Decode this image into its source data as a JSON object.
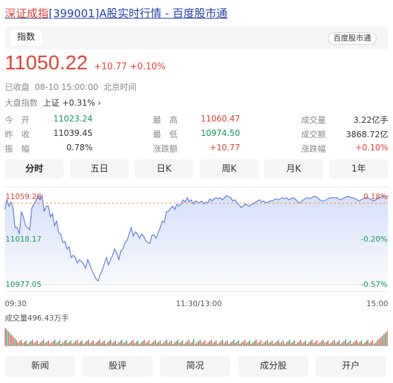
{
  "title": {
    "name": "深证成指",
    "rest": "[399001]A股实时行情 - 百度股市通"
  },
  "tab_label": "指数",
  "source_badge": "百度股市通",
  "quote": {
    "price": "11050.22",
    "change": "+10.77 +0.10%"
  },
  "status": {
    "state": "已收盘",
    "time": "08-10 15:00:00",
    "tz": "北京时间"
  },
  "market": {
    "label": "大盘指数",
    "value": "上证 +0.31%",
    "chevron": "›"
  },
  "stats": [
    [
      {
        "label": "今　开",
        "value": "11023.24",
        "color": "#0a9a55"
      },
      {
        "label": "最　高",
        "value": "11060.47",
        "color": "#e33e33"
      },
      {
        "label": "成交量",
        "value": "3.22亿手",
        "color": "#333333"
      }
    ],
    [
      {
        "label": "昨　收",
        "value": "11039.45",
        "color": "#333333"
      },
      {
        "label": "最　低",
        "value": "10974.50",
        "color": "#0a9a55"
      },
      {
        "label": "成交额",
        "value": "3868.72亿",
        "color": "#333333"
      }
    ],
    [
      {
        "label": "振　幅",
        "value": "0.78%",
        "color": "#333333"
      },
      {
        "label": "涨跌额",
        "value": "+10.77",
        "color": "#e33e33"
      },
      {
        "label": "涨跌幅",
        "value": "+0.10%",
        "color": "#e33e33"
      }
    ]
  ],
  "periods": [
    "分时",
    "五日",
    "日K",
    "周K",
    "月K",
    "1年"
  ],
  "active_period": 0,
  "chart_data": {
    "type": "area",
    "prev_close": 11039.45,
    "y_ticks_left": [
      "11059.28",
      "11018.17",
      "10977.05"
    ],
    "y_ticks_right": [
      "0.18%",
      "-0.20%",
      "-0.57%"
    ],
    "x_ticks": [
      "09:30",
      "11:30/13:00",
      "15:00"
    ],
    "ylim": [
      10977.05,
      11059.28
    ],
    "volume_label": "成交量496.43万手",
    "line_color": "#5b7bd5",
    "up_color": "#e33e33",
    "down_color": "#0a9a55",
    "anchors": [
      [
        0,
        11047
      ],
      [
        3,
        11056
      ],
      [
        6,
        11050
      ],
      [
        9,
        11054
      ],
      [
        12,
        11048
      ],
      [
        15,
        11030
      ],
      [
        18,
        11030
      ],
      [
        21,
        11024
      ],
      [
        24,
        11045
      ],
      [
        27,
        11040
      ],
      [
        30,
        11032
      ],
      [
        33,
        11030
      ],
      [
        36,
        11028
      ],
      [
        39,
        11048
      ],
      [
        42,
        11052
      ],
      [
        45,
        11055
      ],
      [
        48,
        11060
      ],
      [
        51,
        11056
      ],
      [
        54,
        11060
      ],
      [
        57,
        11045
      ],
      [
        60,
        11050
      ],
      [
        63,
        11050
      ],
      [
        66,
        11040
      ],
      [
        69,
        11043
      ],
      [
        72,
        11032
      ],
      [
        75,
        11036
      ],
      [
        78,
        11025
      ],
      [
        81,
        11024
      ],
      [
        84,
        11016
      ],
      [
        87,
        11017
      ],
      [
        90,
        11010
      ],
      [
        93,
        11012
      ],
      [
        96,
        11002
      ],
      [
        99,
        11004
      ],
      [
        102,
        11002
      ],
      [
        105,
        10997
      ],
      [
        108,
        11000
      ],
      [
        111,
        10998
      ],
      [
        114,
        10996
      ],
      [
        117,
        10992
      ],
      [
        120,
        11000
      ],
      [
        123,
        10995
      ],
      [
        126,
        10990
      ],
      [
        129,
        10986
      ],
      [
        132,
        10982
      ],
      [
        135,
        10980
      ],
      [
        138,
        10986
      ],
      [
        141,
        10990
      ],
      [
        144,
        10996
      ],
      [
        147,
        11002
      ],
      [
        150,
        10995
      ],
      [
        153,
        11000
      ],
      [
        156,
        11004
      ],
      [
        159,
        11010
      ],
      [
        162,
        11006
      ],
      [
        165,
        11000
      ],
      [
        168,
        11008
      ],
      [
        171,
        11010
      ],
      [
        174,
        11016
      ],
      [
        177,
        11018
      ],
      [
        180,
        11024
      ],
      [
        183,
        11030
      ],
      [
        186,
        11022
      ],
      [
        189,
        11026
      ],
      [
        192,
        11024
      ],
      [
        195,
        11020
      ],
      [
        198,
        11024
      ],
      [
        201,
        11022
      ],
      [
        204,
        11018
      ],
      [
        207,
        11016
      ],
      [
        210,
        11015
      ],
      [
        213,
        11023
      ],
      [
        216,
        11023
      ],
      [
        219,
        11020
      ],
      [
        222,
        11025
      ],
      [
        225,
        11030
      ],
      [
        228,
        11036
      ],
      [
        231,
        11035
      ],
      [
        234,
        11045
      ],
      [
        237,
        11045
      ],
      [
        240,
        11048
      ],
      [
        243,
        11050
      ],
      [
        246,
        11047
      ],
      [
        249,
        11052
      ],
      [
        252,
        11050
      ],
      [
        255,
        11052
      ],
      [
        258,
        11056
      ],
      [
        261,
        11054
      ],
      [
        264,
        11058
      ],
      [
        267,
        11054
      ],
      [
        270,
        11056
      ],
      [
        273,
        11052
      ],
      [
        276,
        11055
      ],
      [
        279,
        11054
      ],
      [
        282,
        11053
      ],
      [
        285,
        11055
      ],
      [
        288,
        11052
      ],
      [
        291,
        11054
      ],
      [
        294,
        11053
      ],
      [
        297,
        11057
      ],
      [
        300,
        11055
      ],
      [
        303,
        11057
      ],
      [
        306,
        11058
      ],
      [
        309,
        11057
      ],
      [
        312,
        11058
      ],
      [
        315,
        11056
      ],
      [
        318,
        11058
      ],
      [
        321,
        11060
      ],
      [
        324,
        11059
      ],
      [
        327,
        11058
      ],
      [
        330,
        11055
      ],
      [
        333,
        11056
      ],
      [
        336,
        11054
      ],
      [
        339,
        11051
      ],
      [
        342,
        11049
      ],
      [
        345,
        11050
      ],
      [
        348,
        11052
      ],
      [
        351,
        11051
      ],
      [
        354,
        11050
      ],
      [
        357,
        11052
      ],
      [
        360,
        11052
      ],
      [
        363,
        11054
      ],
      [
        366,
        11055
      ],
      [
        369,
        11056
      ],
      [
        372,
        11054
      ],
      [
        375,
        11055
      ],
      [
        378,
        11053
      ],
      [
        381,
        11054
      ],
      [
        384,
        11055
      ],
      [
        387,
        11055
      ],
      [
        390,
        11056
      ],
      [
        393,
        11057
      ],
      [
        396,
        11056
      ],
      [
        399,
        11057
      ],
      [
        402,
        11058
      ],
      [
        405,
        11057
      ],
      [
        408,
        11058
      ],
      [
        411,
        11056
      ],
      [
        414,
        11057
      ],
      [
        417,
        11058
      ],
      [
        420,
        11057
      ],
      [
        423,
        11055
      ],
      [
        426,
        11053
      ],
      [
        429,
        11054
      ],
      [
        432,
        11056
      ],
      [
        435,
        11057
      ],
      [
        438,
        11058
      ],
      [
        441,
        11057
      ],
      [
        444,
        11058
      ],
      [
        447,
        11059
      ],
      [
        450,
        11059
      ],
      [
        453,
        11058
      ],
      [
        456,
        11056
      ],
      [
        459,
        11055
      ],
      [
        462,
        11055
      ],
      [
        465,
        11056
      ],
      [
        468,
        11057
      ],
      [
        471,
        11058
      ],
      [
        474,
        11058
      ],
      [
        477,
        11058
      ],
      [
        480,
        11058
      ],
      [
        483,
        11057
      ],
      [
        486,
        11056
      ],
      [
        489,
        11057
      ],
      [
        492,
        11058
      ],
      [
        495,
        11059
      ],
      [
        498,
        11059
      ],
      [
        501,
        11058
      ],
      [
        504,
        11058
      ],
      [
        507,
        11057
      ],
      [
        510,
        11056
      ],
      [
        513,
        11055
      ],
      [
        516,
        11056
      ],
      [
        519,
        11057
      ],
      [
        522,
        11058
      ],
      [
        525,
        11058
      ],
      [
        528,
        11057
      ],
      [
        531,
        11056
      ],
      [
        534,
        11055
      ],
      [
        537,
        11056
      ],
      [
        540,
        11058
      ],
      [
        543,
        11058
      ],
      [
        546,
        11059
      ],
      [
        549,
        11060
      ],
      [
        552,
        11059
      ],
      [
        555,
        11060
      ]
    ]
  },
  "bottom_tabs": [
    "新闻",
    "股评",
    "简况",
    "成分股",
    "开户"
  ]
}
